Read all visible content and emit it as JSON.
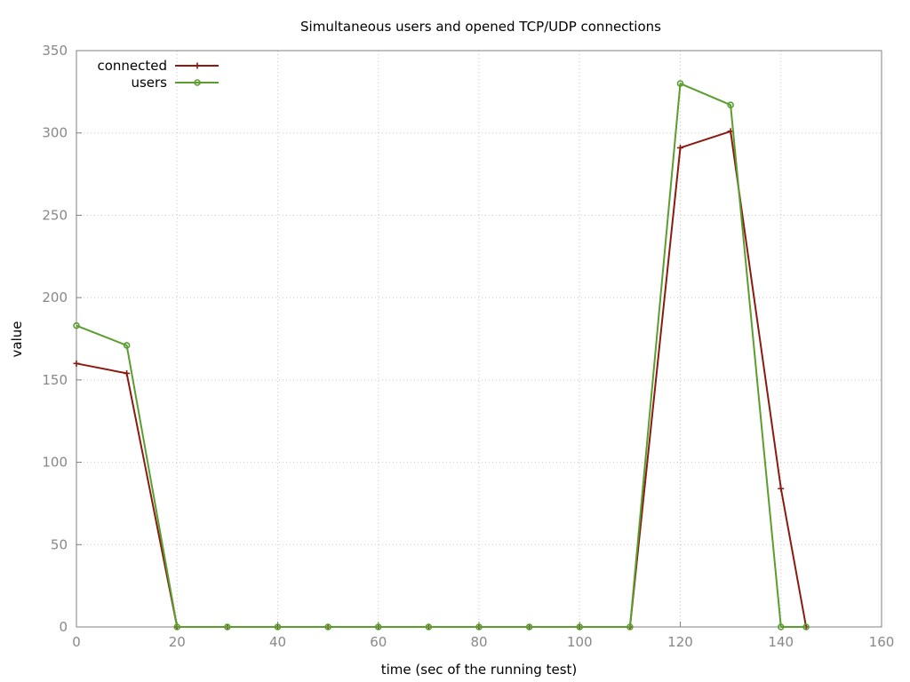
{
  "chart_data": {
    "type": "line",
    "title": "Simultaneous users and opened TCP/UDP connections",
    "xlabel": "time (sec of the running test)",
    "ylabel": "value",
    "xlim": [
      0,
      160
    ],
    "ylim": [
      0,
      350
    ],
    "xticks": [
      0,
      20,
      40,
      60,
      80,
      100,
      120,
      140,
      160
    ],
    "yticks": [
      0,
      50,
      100,
      150,
      200,
      250,
      300,
      350
    ],
    "grid": true,
    "legend_position": "top-left",
    "series": [
      {
        "name": "connected",
        "color": "#8b1a10",
        "marker": "plus",
        "x": [
          0,
          10,
          20,
          30,
          40,
          50,
          60,
          70,
          80,
          90,
          100,
          110,
          120,
          130,
          140,
          145
        ],
        "y": [
          160,
          154,
          0,
          0,
          0,
          0,
          0,
          0,
          0,
          0,
          0,
          0,
          291,
          301,
          84,
          0
        ]
      },
      {
        "name": "users",
        "color": "#5a9e2f",
        "marker": "circle",
        "x": [
          0,
          10,
          20,
          30,
          40,
          50,
          60,
          70,
          80,
          90,
          100,
          110,
          120,
          130,
          140,
          145
        ],
        "y": [
          183,
          171,
          0,
          0,
          0,
          0,
          0,
          0,
          0,
          0,
          0,
          0,
          330,
          317,
          0,
          0
        ]
      }
    ]
  }
}
